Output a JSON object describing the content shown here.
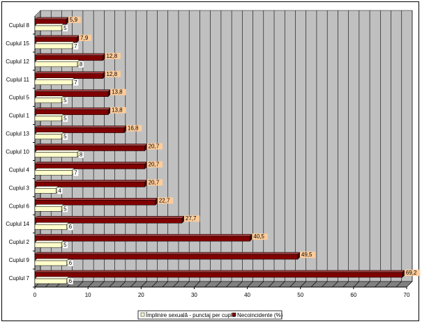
{
  "chart_data": {
    "type": "bar",
    "orientation": "horizontal",
    "categories": [
      "Cuplul 7",
      "Cuplul 9",
      "Cuplul 2",
      "Cuplul 14",
      "Cuplul 6",
      "Cuplul 3",
      "Cuplul 4",
      "Cuplul 10",
      "Cuplul 13",
      "Cuplul 1",
      "Cuplul 5",
      "Cuplul 11",
      "Cuplul 12",
      "Cuplul 15",
      "Cuplul 8"
    ],
    "series": [
      {
        "name": "Împlinire sexuală - punctaj per cuplu",
        "color": "#FFFFCC",
        "values": [
          6,
          6,
          5,
          6,
          5,
          4,
          7,
          8,
          5,
          5,
          5,
          7,
          8,
          7,
          5
        ]
      },
      {
        "name": "Necoincidente (%)",
        "color": "#800000",
        "values": [
          69.2,
          49.5,
          40.5,
          27.7,
          22.7,
          20.7,
          20.7,
          20.7,
          16.8,
          13.8,
          13.8,
          12.8,
          12.8,
          7.9,
          5.9
        ]
      }
    ],
    "data_labels": {
      "Împlinire sexuală - punctaj per cuplu": [
        "6",
        "6",
        "5",
        "6",
        "5",
        "4",
        "7",
        "8",
        "5",
        "5",
        "5",
        "7",
        "8",
        "7",
        "5"
      ],
      "Necoincidente (%)": [
        "69,2",
        "49,5",
        "40,5",
        "27,7",
        "22,7",
        "20,7",
        "20,7",
        "20,7",
        "16,8",
        "13,8",
        "13,8",
        "12,8",
        "12,8",
        "7,9",
        "5,9"
      ]
    },
    "xlim": [
      0,
      70
    ],
    "xticks": [
      "0",
      "10",
      "20",
      "30",
      "40",
      "50",
      "60",
      "70"
    ],
    "grid": true,
    "legend_position": "bottom",
    "legend": [
      "Împlinire sexuală - punctaj per cuplu",
      "Necoincidente (%)"
    ],
    "colors": {
      "plot_wall": "#C0C0C0",
      "gridline": "#000000",
      "series1": "#FFFFCC",
      "series2": "#800000",
      "series2_shadow": "#400000",
      "label_bg": "#FFCC99"
    }
  }
}
